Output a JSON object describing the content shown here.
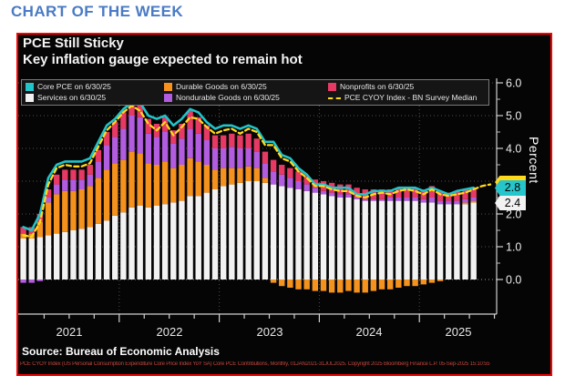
{
  "page": {
    "heading": "CHART OF THE WEEK"
  },
  "panel": {
    "title": "PCE Still Sticky",
    "subtitle": "Key inflation gauge expected to remain hot",
    "source": "Source: Bureau of Economic Analysis",
    "footnote": "PCE CYOY Index (US Personal Consumption Expenditure Core Price Index YoY SA) Core PCE Contributions, Monthly, 01JAN2021-31JUL2025. Copyright 2025 Bloomberg Finance L.P. 05-Sep-2025 15:10:55"
  },
  "axis": {
    "percent_label": "Percent"
  },
  "legend": {
    "items": [
      {
        "label": "Core PCE on 6/30/25",
        "swatch": "#22c3c9",
        "type": "box"
      },
      {
        "label": "Durable Goods on 6/30/25",
        "swatch": "#f5921e",
        "type": "box"
      },
      {
        "label": "Nonprofits on 6/30/25",
        "swatch": "#e63964",
        "type": "box"
      },
      {
        "label": "Services on 6/30/25",
        "swatch": "#f2f2f2",
        "type": "box"
      },
      {
        "label": "Nondurable Goods on 6/30/25",
        "swatch": "#b25ce0",
        "type": "box"
      },
      {
        "label": "PCE CYOY Index - BN Survey Median",
        "swatch": "#ffd91c",
        "type": "dash"
      }
    ]
  },
  "chart_data": {
    "type": "bar",
    "subtype": "stacked-monthly-contributions-with-lines",
    "x_start": "2021-01",
    "x_end_bars": "2025-07",
    "ylim": [
      -0.6,
      6.3
    ],
    "grid": "dotted",
    "ytick_labels": [
      "6.0",
      "5.0",
      "4.0",
      "3.0",
      "2.0",
      "1.0",
      "0.0"
    ],
    "year_labels": [
      "2021",
      "2022",
      "2023",
      "2024",
      "2025"
    ],
    "bar_series": [
      {
        "name": "Services on 6/30/25",
        "color": "#f2f2f2",
        "values": [
          1.25,
          1.25,
          1.3,
          1.35,
          1.4,
          1.45,
          1.5,
          1.55,
          1.6,
          1.7,
          1.8,
          1.95,
          2.05,
          2.2,
          2.25,
          2.2,
          2.25,
          2.3,
          2.35,
          2.4,
          2.55,
          2.55,
          2.65,
          2.75,
          2.85,
          2.9,
          2.95,
          3.0,
          3.0,
          2.95,
          2.9,
          2.85,
          2.8,
          2.75,
          2.7,
          2.65,
          2.6,
          2.55,
          2.5,
          2.5,
          2.45,
          2.4,
          2.4,
          2.4,
          2.4,
          2.4,
          2.4,
          2.4,
          2.35,
          2.35,
          2.3,
          2.3,
          2.3,
          2.3,
          2.35
        ]
      },
      {
        "name": "Durable Goods on 6/30/25",
        "color": "#f5921e",
        "values": [
          0.15,
          0.15,
          0.45,
          1.0,
          1.2,
          1.25,
          1.2,
          1.2,
          1.25,
          1.4,
          1.55,
          1.6,
          1.6,
          1.7,
          1.6,
          1.35,
          1.25,
          1.3,
          1.05,
          1.1,
          1.15,
          1.05,
          0.85,
          0.6,
          0.55,
          0.5,
          0.45,
          0.45,
          0.4,
          0.15,
          -0.1,
          -0.2,
          -0.25,
          -0.3,
          -0.3,
          -0.35,
          -0.35,
          -0.4,
          -0.4,
          -0.35,
          -0.4,
          -0.4,
          -0.35,
          -0.3,
          -0.3,
          -0.25,
          -0.2,
          -0.2,
          -0.15,
          -0.1,
          -0.05,
          0.0,
          0.0,
          0.05,
          0.05
        ]
      },
      {
        "name": "Nondurable Goods on 6/30/25",
        "color": "#b25ce0",
        "values": [
          -0.1,
          -0.1,
          -0.05,
          0.15,
          0.3,
          0.35,
          0.35,
          0.3,
          0.35,
          0.5,
          0.75,
          0.8,
          0.95,
          1.1,
          1.1,
          0.9,
          0.85,
          0.9,
          0.75,
          0.8,
          0.9,
          0.85,
          0.75,
          0.65,
          0.6,
          0.65,
          0.6,
          0.55,
          0.5,
          0.45,
          0.4,
          0.35,
          0.3,
          0.25,
          0.2,
          0.15,
          0.1,
          0.1,
          0.1,
          0.1,
          0.05,
          0.05,
          0.05,
          0.05,
          0.1,
          0.1,
          0.1,
          0.1,
          0.1,
          0.15,
          0.1,
          0.1,
          0.1,
          0.1,
          0.1
        ]
      },
      {
        "name": "Nonprofits on 6/30/25",
        "color": "#e63964",
        "values": [
          0.2,
          0.2,
          0.25,
          0.25,
          0.3,
          0.3,
          0.3,
          0.3,
          0.3,
          0.35,
          0.4,
          0.45,
          0.5,
          0.55,
          0.55,
          0.45,
          0.4,
          0.45,
          0.4,
          0.45,
          0.55,
          0.5,
          0.45,
          0.4,
          0.4,
          0.4,
          0.4,
          0.45,
          0.4,
          0.35,
          0.35,
          0.3,
          0.3,
          0.3,
          0.25,
          0.25,
          0.3,
          0.3,
          0.3,
          0.3,
          0.3,
          0.3,
          0.3,
          0.3,
          0.25,
          0.3,
          0.3,
          0.3,
          0.3,
          0.35,
          0.3,
          0.25,
          0.3,
          0.3,
          0.3
        ]
      }
    ],
    "line_series": [
      {
        "name": "Core PCE on 6/30/25",
        "color": "#22c3c9",
        "style": "solid",
        "values": [
          1.6,
          1.5,
          2.0,
          3.1,
          3.5,
          3.6,
          3.6,
          3.6,
          3.7,
          4.2,
          4.7,
          4.9,
          5.2,
          5.4,
          5.4,
          5.0,
          4.9,
          5.0,
          4.7,
          4.9,
          5.2,
          5.1,
          4.8,
          4.6,
          4.7,
          4.7,
          4.6,
          4.7,
          4.6,
          4.2,
          4.2,
          3.8,
          3.7,
          3.4,
          3.2,
          2.9,
          2.9,
          2.8,
          2.8,
          2.8,
          2.6,
          2.6,
          2.7,
          2.7,
          2.7,
          2.8,
          2.8,
          2.8,
          2.7,
          2.8,
          2.7,
          2.6,
          2.7,
          2.75,
          2.8
        ]
      },
      {
        "name": "PCE CYOY Index - BN Survey Median",
        "color": "#ffd91c",
        "style": "dashed",
        "values": [
          1.35,
          1.3,
          1.75,
          2.9,
          3.4,
          3.5,
          3.45,
          3.45,
          3.55,
          4.05,
          4.55,
          4.8,
          5.1,
          5.3,
          5.15,
          4.75,
          4.55,
          4.8,
          4.4,
          4.65,
          4.95,
          4.9,
          4.65,
          4.45,
          4.55,
          4.6,
          4.45,
          4.6,
          4.5,
          4.1,
          4.1,
          3.7,
          3.6,
          3.3,
          3.1,
          2.85,
          2.85,
          2.75,
          2.7,
          2.7,
          2.55,
          2.5,
          2.6,
          2.65,
          2.6,
          2.7,
          2.75,
          2.7,
          2.6,
          2.75,
          2.6,
          2.55,
          2.6,
          2.65,
          2.75,
          2.85,
          2.9
        ]
      }
    ],
    "end_labels": [
      {
        "text": "2.8",
        "bg": "#25c5cb"
      },
      {
        "text": "2.4",
        "bg": "#f2f2f2"
      }
    ]
  }
}
